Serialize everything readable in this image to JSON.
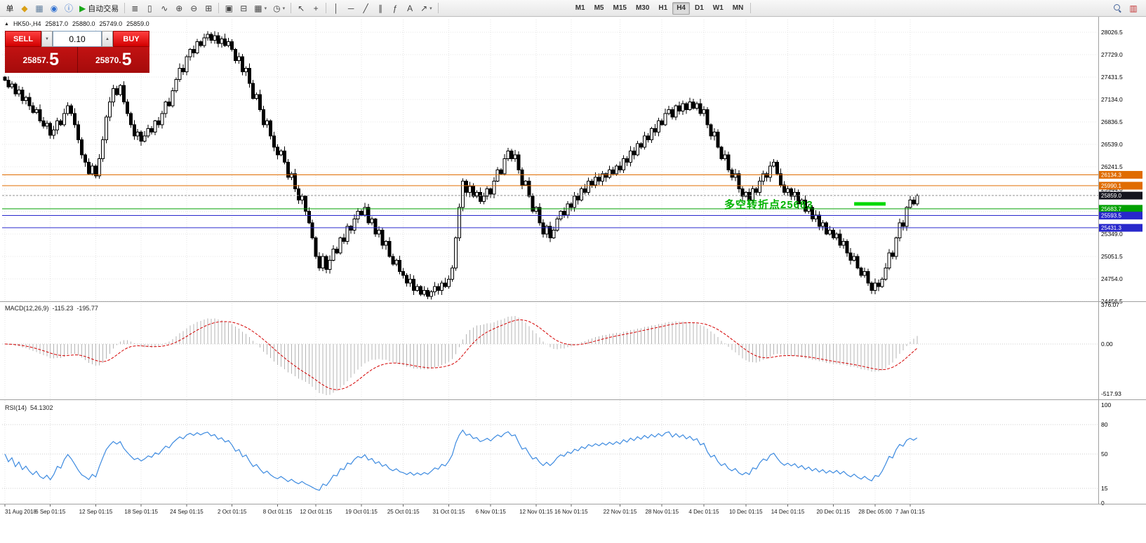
{
  "toolbar": {
    "items": [
      {
        "n": "new-order-button",
        "t": "单"
      },
      {
        "n": "accounts-icon",
        "g": "◆",
        "c": "#d9a016"
      },
      {
        "n": "chart-window-icon",
        "g": "▦",
        "c": "#5f7d9c"
      },
      {
        "n": "metaquotes-icon",
        "g": "◉",
        "c": "#2f6fd0"
      },
      {
        "n": "info-icon",
        "g": "ⓘ",
        "c": "#2f6fd0"
      },
      {
        "n": "autotrade-button",
        "g": "▶",
        "c": "#18a818",
        "t": "自动交易"
      },
      {
        "sep": 1
      },
      {
        "n": "ohlc-bars-icon",
        "g": "≣"
      },
      {
        "n": "candlestick-chart-icon",
        "g": "▯"
      },
      {
        "n": "line-chart-icon",
        "g": "∿"
      },
      {
        "n": "zoom-in-icon",
        "g": "⊕"
      },
      {
        "n": "zoom-out-icon",
        "g": "⊖"
      },
      {
        "n": "tile-windows-icon",
        "g": "⊞"
      },
      {
        "sep": 1
      },
      {
        "n": "cascade-windows-icon",
        "g": "▣"
      },
      {
        "n": "arrange-windows-icon",
        "g": "⊟"
      },
      {
        "n": "new-chart-button",
        "g": "▦",
        "d": 1
      },
      {
        "n": "profiles-button",
        "g": "◷",
        "d": 1
      },
      {
        "sep": 1
      },
      {
        "n": "cursor-icon",
        "g": "↖"
      },
      {
        "n": "crosshair-icon",
        "g": "+"
      },
      {
        "sep": 1
      },
      {
        "n": "vertical-line-icon",
        "g": "│"
      },
      {
        "n": "horizontal-line-icon",
        "g": "─"
      },
      {
        "n": "trendline-icon",
        "g": "╱"
      },
      {
        "n": "equidistant-channel-icon",
        "g": "∥"
      },
      {
        "n": "fibonacci-icon",
        "g": "ƒ"
      },
      {
        "n": "text-icon",
        "g": "A"
      },
      {
        "n": "arrows-icon",
        "g": "↗",
        "d": 1
      },
      {
        "sep": 1
      },
      {
        "tf": 1
      },
      {
        "sep": 1
      },
      {
        "n": "search-icon",
        "mag": 1,
        "r": 1
      },
      {
        "n": "market-watch-icon",
        "g": "▥",
        "c": "#c23030",
        "r": 1
      }
    ],
    "timeframes": [
      "M1",
      "M5",
      "M15",
      "M30",
      "H1",
      "H4",
      "D1",
      "W1",
      "MN"
    ],
    "active_timeframe": "H4"
  },
  "chart": {
    "header": {
      "collapse_glyph": "▲",
      "symbol_period": "HK50-,H4",
      "open": "25817.0",
      "high": "25880.0",
      "low": "25749.0",
      "close": "25859.0"
    },
    "one_click": {
      "sell_label": "SELL",
      "buy_label": "BUY",
      "lot": "0.10",
      "down_glyph": "▼",
      "up_glyph": "▲",
      "sell_price": "25857.",
      "sell_price_big": "5",
      "buy_price": "25870.",
      "buy_price_big": "5"
    }
  },
  "chart_data": [
    {
      "type": "candlestick",
      "symbol": "HK50-",
      "timeframe": "H4",
      "ylim": [
        24456.5,
        28026.5
      ],
      "price_ticks": [
        "28026.5",
        "27729.0",
        "27431.5",
        "27134.0",
        "26836.5",
        "26539.0",
        "26241.5",
        "25944.0",
        "25646.5",
        "25349.0",
        "25051.5",
        "24754.0",
        "24456.5"
      ],
      "time_ticks": [
        {
          "label": "31 Aug 2018",
          "index": 0
        },
        {
          "label": "6 Sep 01:15",
          "index": 13
        },
        {
          "label": "12 Sep 01:15",
          "index": 26
        },
        {
          "label": "18 Sep 01:15",
          "index": 39
        },
        {
          "label": "24 Sep 01:15",
          "index": 52
        },
        {
          "label": "2 Oct 01:15",
          "index": 65
        },
        {
          "label": "8 Oct 01:15",
          "index": 78
        },
        {
          "label": "12 Oct 01:15",
          "index": 89
        },
        {
          "label": "19 Oct 01:15",
          "index": 102
        },
        {
          "label": "25 Oct 01:15",
          "index": 114
        },
        {
          "label": "31 Oct 01:15",
          "index": 127
        },
        {
          "label": "6 Nov 01:15",
          "index": 139
        },
        {
          "label": "12 Nov 01:15",
          "index": 152
        },
        {
          "label": "16 Nov 01:15",
          "index": 162
        },
        {
          "label": "22 Nov 01:15",
          "index": 176
        },
        {
          "label": "28 Nov 01:15",
          "index": 188
        },
        {
          "label": "4 Dec 01:15",
          "index": 200
        },
        {
          "label": "10 Dec 01:15",
          "index": 212
        },
        {
          "label": "14 Dec 01:15",
          "index": 224
        },
        {
          "label": "20 Dec 01:15",
          "index": 237
        },
        {
          "label": "28 Dec 05:00",
          "index": 249
        },
        {
          "label": "7 Jan 01:15",
          "index": 259
        }
      ],
      "closes": [
        27390,
        27300,
        27340,
        27210,
        27260,
        27120,
        27160,
        27050,
        26960,
        27000,
        26850,
        26780,
        26820,
        26660,
        26730,
        26850,
        26800,
        26950,
        27050,
        26950,
        26800,
        26600,
        26400,
        26300,
        26150,
        26250,
        26120,
        26350,
        26600,
        26900,
        27100,
        27280,
        27200,
        27320,
        27100,
        26950,
        26800,
        26650,
        26700,
        26580,
        26650,
        26750,
        26700,
        26850,
        26800,
        26950,
        27100,
        27050,
        27250,
        27400,
        27550,
        27500,
        27700,
        27800,
        27750,
        27900,
        27850,
        27950,
        28000,
        27920,
        27980,
        27880,
        27940,
        27850,
        27900,
        27800,
        27650,
        27700,
        27500,
        27550,
        27350,
        27150,
        27200,
        27000,
        26800,
        26850,
        26650,
        26500,
        26400,
        26450,
        26300,
        26100,
        26150,
        25950,
        25800,
        25850,
        25650,
        25500,
        25300,
        25050,
        24900,
        25050,
        24880,
        25000,
        25150,
        25100,
        25300,
        25250,
        25450,
        25400,
        25550,
        25650,
        25600,
        25700,
        25500,
        25550,
        25350,
        25400,
        25200,
        25250,
        25050,
        24950,
        25000,
        24850,
        24800,
        24700,
        24750,
        24600,
        24650,
        24550,
        24600,
        24520,
        24580,
        24650,
        24600,
        24700,
        24650,
        24750,
        24900,
        25300,
        25700,
        26050,
        25900,
        25980,
        25850,
        25900,
        25780,
        25850,
        25950,
        25880,
        26050,
        26200,
        26150,
        26350,
        26450,
        26350,
        26400,
        26200,
        26000,
        26050,
        25850,
        25650,
        25700,
        25500,
        25350,
        25450,
        25300,
        25400,
        25550,
        25650,
        25600,
        25750,
        25700,
        25850,
        25800,
        25950,
        25900,
        26050,
        26000,
        26100,
        26050,
        26150,
        26100,
        26200,
        26150,
        26250,
        26200,
        26350,
        26300,
        26450,
        26400,
        26550,
        26500,
        26650,
        26600,
        26750,
        26700,
        26850,
        26800,
        26950,
        27000,
        26900,
        27050,
        26980,
        27080,
        27000,
        27100,
        27020,
        27080,
        26950,
        27000,
        26800,
        26650,
        26700,
        26500,
        26350,
        26400,
        26200,
        26100,
        26150,
        25950,
        25850,
        25900,
        25800,
        25950,
        25900,
        26050,
        26150,
        26100,
        26250,
        26300,
        26150,
        26000,
        25900,
        25950,
        25850,
        25900,
        25750,
        25800,
        25650,
        25700,
        25550,
        25600,
        25450,
        25500,
        25350,
        25400,
        25300,
        25350,
        25200,
        25250,
        25100,
        25000,
        25050,
        24900,
        24800,
        24850,
        24700,
        24600,
        24700,
        24650,
        24750,
        24900,
        25100,
        25050,
        25300,
        25500,
        25450,
        25700,
        25800,
        25750,
        25859
      ],
      "hlines": [
        {
          "price": 26134.3,
          "label": "26134.3",
          "color": "#e06c00",
          "tag": "#e06c00"
        },
        {
          "price": 25990.1,
          "label": "25990.1",
          "color": "#e06c00",
          "tag": "#e06c00"
        },
        {
          "price": 25859.0,
          "label": "25859.0",
          "color": "#909090",
          "tag": "#15151f",
          "dash": "3 2"
        },
        {
          "price": 25683.7,
          "label": "25683.7",
          "color": "#00a000",
          "tag": "#00a000"
        },
        {
          "price": 25593.5,
          "label": "25593.5",
          "color": "#2828cc",
          "tag": "#2828cc"
        },
        {
          "price": 25431.3,
          "label": "25431.3",
          "color": "#2828cc",
          "tag": "#2828cc"
        }
      ],
      "segment": {
        "from_index": 243,
        "to_index": 252,
        "price": 25749.0,
        "color": "#00d800"
      },
      "annotation": {
        "text": "多空转折点25683",
        "color": "#00b300"
      }
    },
    {
      "type": "macd",
      "label": "MACD(12,26,9)",
      "main_value": "-115.23",
      "signal_value": "-195.77",
      "params": [
        12,
        26,
        9
      ],
      "axis_ticks": [
        "376.07",
        "0.00",
        "-517.93"
      ],
      "histogram_color": "#b4b4b4",
      "signal_color": "#d40000"
    },
    {
      "type": "rsi",
      "label": "RSI(14)",
      "value": "54.1302",
      "period": 14,
      "axis_ticks": [
        "100",
        "80",
        "50",
        "15",
        "0"
      ],
      "levels": [
        80,
        50,
        15
      ],
      "line_color": "#3c8ae0"
    }
  ]
}
